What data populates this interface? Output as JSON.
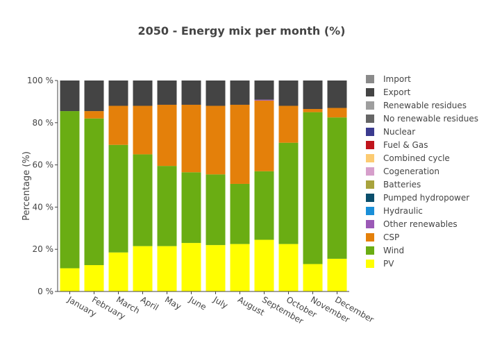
{
  "chart_data": {
    "type": "bar",
    "stacked": true,
    "title": "2050 - Energy mix per month (%)",
    "xlabel": "",
    "ylabel": "Percentage (%)",
    "ylim": [
      0,
      100
    ],
    "y_ticks": [
      0,
      20,
      40,
      60,
      80,
      100
    ],
    "y_tick_labels": [
      "0 %",
      "20 %",
      "40 %",
      "60 %",
      "80 %",
      "100 %"
    ],
    "grid": false,
    "legend_position": "right",
    "categories": [
      "January",
      "February",
      "March",
      "April",
      "May",
      "June",
      "July",
      "August",
      "September",
      "October",
      "November",
      "December"
    ],
    "legend": [
      "Import",
      "Export",
      "Renewable residues",
      "No renewable residues",
      "Nuclear",
      "Fuel & Gas",
      "Combined cycle",
      "Cogeneration",
      "Batteries",
      "Pumped hydropower",
      "Hydraulic",
      "Other renewables",
      "CSP",
      "Wind",
      "PV"
    ],
    "series": [
      {
        "name": "PV",
        "color": "#ffff00",
        "values": [
          11,
          12.5,
          18.5,
          21.5,
          21.5,
          23,
          22,
          22.5,
          24.5,
          22.5,
          13,
          15.5
        ]
      },
      {
        "name": "Wind",
        "color": "#6aad13",
        "values": [
          74.5,
          69.5,
          51,
          43.5,
          38,
          33.5,
          33.5,
          28.5,
          32.5,
          48,
          72,
          67
        ]
      },
      {
        "name": "CSP",
        "color": "#e4800a",
        "values": [
          0,
          3.5,
          18.5,
          23,
          29,
          32,
          32.5,
          37.5,
          33.5,
          17.5,
          1.5,
          4.5
        ]
      },
      {
        "name": "Other renewables",
        "color": "#9b59b6",
        "values": [
          0,
          0,
          0,
          0,
          0,
          0,
          0,
          0,
          0.4,
          0,
          0,
          0
        ]
      },
      {
        "name": "Hydraulic",
        "color": "#1a8fd8",
        "values": [
          0,
          0,
          0,
          0,
          0,
          0,
          0,
          0,
          0,
          0,
          0,
          0
        ]
      },
      {
        "name": "Pumped hydropower",
        "color": "#0b4f6c",
        "values": [
          0,
          0,
          0,
          0,
          0,
          0,
          0,
          0,
          0,
          0,
          0,
          0
        ]
      },
      {
        "name": "Batteries",
        "color": "#a8a33d",
        "values": [
          0,
          0,
          0,
          0,
          0,
          0,
          0,
          0,
          0,
          0,
          0,
          0
        ]
      },
      {
        "name": "Cogeneration",
        "color": "#d69fcb",
        "values": [
          0,
          0,
          0,
          0,
          0,
          0,
          0,
          0,
          0,
          0,
          0,
          0
        ]
      },
      {
        "name": "Combined cycle",
        "color": "#fccb72",
        "values": [
          0,
          0,
          0,
          0,
          0,
          0,
          0,
          0,
          0,
          0,
          0,
          0
        ]
      },
      {
        "name": "Fuel & Gas",
        "color": "#c0141c",
        "values": [
          0,
          0,
          0,
          0,
          0,
          0,
          0,
          0,
          0,
          0,
          0,
          0
        ]
      },
      {
        "name": "Nuclear",
        "color": "#3b3b8f",
        "values": [
          0,
          0,
          0,
          0,
          0,
          0,
          0,
          0,
          0,
          0,
          0,
          0
        ]
      },
      {
        "name": "No renewable residues",
        "color": "#666666",
        "values": [
          0,
          0,
          0,
          0,
          0,
          0,
          0,
          0,
          0,
          0,
          0,
          0
        ]
      },
      {
        "name": "Renewable residues",
        "color": "#9e9e9e",
        "values": [
          0,
          0,
          0,
          0,
          0,
          0,
          0,
          0,
          0,
          0,
          0,
          0
        ]
      },
      {
        "name": "Export",
        "color": "#444444",
        "values": [
          14.5,
          14.5,
          12,
          12,
          11.5,
          11.5,
          12,
          11.5,
          9.1,
          12,
          13.5,
          13
        ]
      },
      {
        "name": "Import",
        "color": "#8a8a8a",
        "values": [
          0,
          0,
          0,
          0,
          0,
          0,
          0,
          0,
          0,
          0,
          0,
          0
        ]
      }
    ]
  }
}
